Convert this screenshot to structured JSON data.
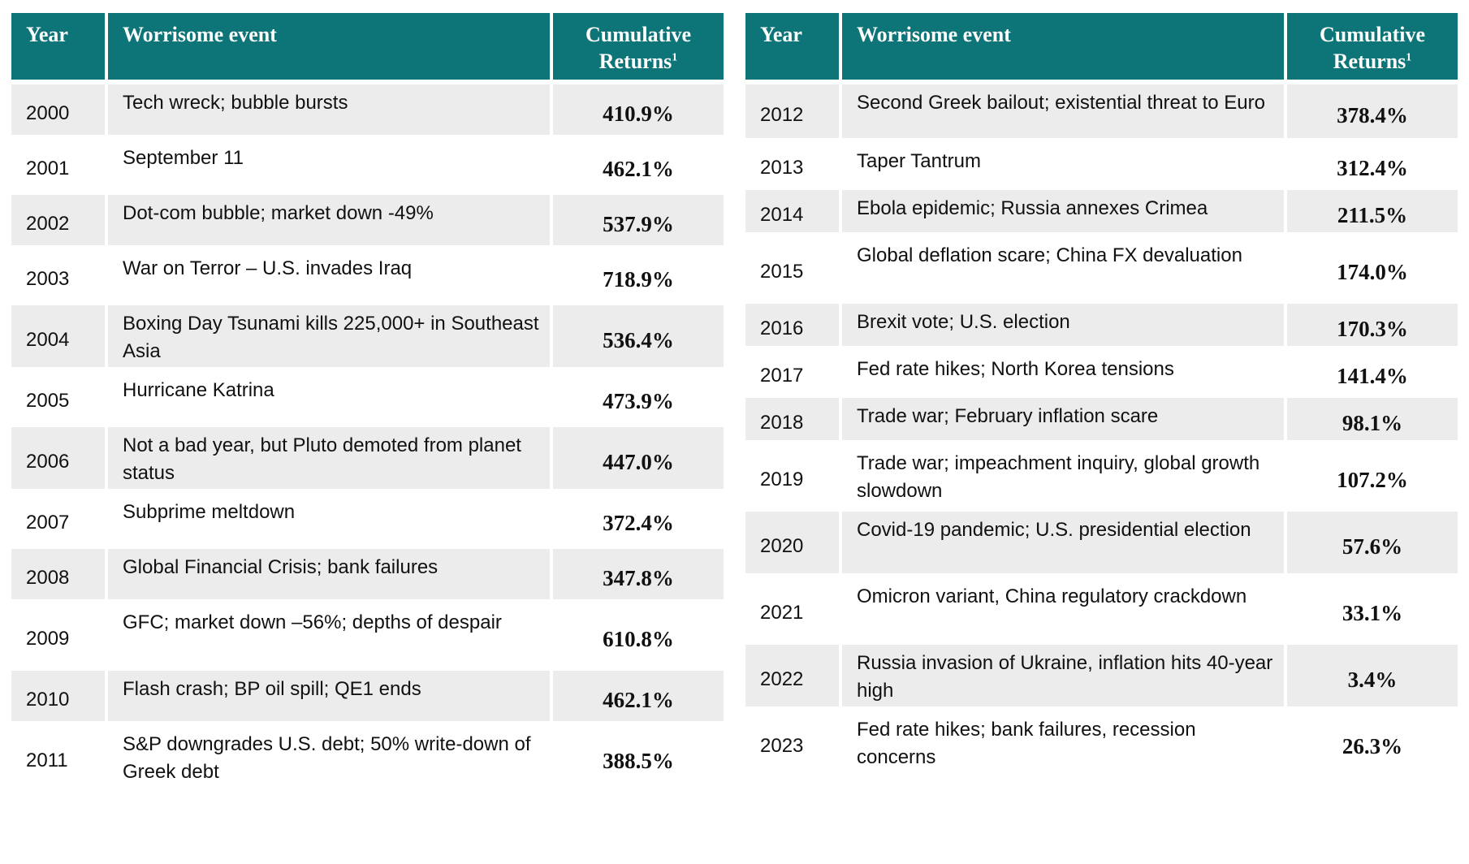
{
  "headers": {
    "year": "Year",
    "event": "Worrisome event",
    "returns_line1": "Cumulative",
    "returns_line2": "Returns",
    "returns_footnote": "1"
  },
  "left_rows": [
    {
      "year": "2000",
      "event": "Tech wreck; bubble bursts",
      "ret": "410.9%"
    },
    {
      "year": "2001",
      "event": "September 11",
      "ret": "462.1%"
    },
    {
      "year": "2002",
      "event": "Dot-com bubble; market down -49%",
      "ret": "537.9%"
    },
    {
      "year": "2003",
      "event": "War on Terror – U.S. invades Iraq",
      "ret": "718.9%"
    },
    {
      "year": "2004",
      "event": "Boxing Day Tsunami kills 225,000+ in Southeast Asia",
      "ret": "536.4%"
    },
    {
      "year": "2005",
      "event": "Hurricane Katrina",
      "ret": "473.9%"
    },
    {
      "year": "2006",
      "event": "Not a bad year, but Pluto demoted from planet status",
      "ret": "447.0%"
    },
    {
      "year": "2007",
      "event": "Subprime meltdown",
      "ret": "372.4%"
    },
    {
      "year": "2008",
      "event": "Global Financial Crisis; bank failures",
      "ret": "347.8%"
    },
    {
      "year": "2009",
      "event": "GFC; market down –56%; depths of despair",
      "ret": "610.8%"
    },
    {
      "year": "2010",
      "event": "Flash crash; BP oil spill; QE1 ends",
      "ret": "462.1%"
    },
    {
      "year": "2011",
      "event": "S&P downgrades U.S. debt; 50% write-down of Greek debt",
      "ret": "388.5%"
    }
  ],
  "right_rows": [
    {
      "year": "2012",
      "event": "Second Greek bailout; existential threat to Euro",
      "ret": "378.4%"
    },
    {
      "year": "2013",
      "event": "Taper Tantrum",
      "ret": "312.4%"
    },
    {
      "year": "2014",
      "event": "Ebola epidemic; Russia annexes Crimea",
      "ret": "211.5%"
    },
    {
      "year": "2015",
      "event": "Global deflation scare; China FX devaluation",
      "ret": "174.0%"
    },
    {
      "year": "2016",
      "event": "Brexit vote; U.S. election",
      "ret": "170.3%"
    },
    {
      "year": "2017",
      "event": "Fed rate hikes; North Korea tensions",
      "ret": "141.4%"
    },
    {
      "year": "2018",
      "event": "Trade war; February inflation scare",
      "ret": "98.1%"
    },
    {
      "year": "2019",
      "event": "Trade war; impeachment inquiry, global growth slowdown",
      "ret": "107.2%"
    },
    {
      "year": "2020",
      "event": "Covid-19 pandemic; U.S. presidential election",
      "ret": "57.6%"
    },
    {
      "year": "2021",
      "event": "Omicron variant, China regulatory crackdown",
      "ret": "33.1%"
    },
    {
      "year": "2022",
      "event": "Russia invasion of Ukraine, inflation hits 40-year high",
      "ret": "3.4%"
    },
    {
      "year": "2023",
      "event": "Fed rate hikes; bank failures, recession concerns",
      "ret": "26.3%"
    }
  ]
}
